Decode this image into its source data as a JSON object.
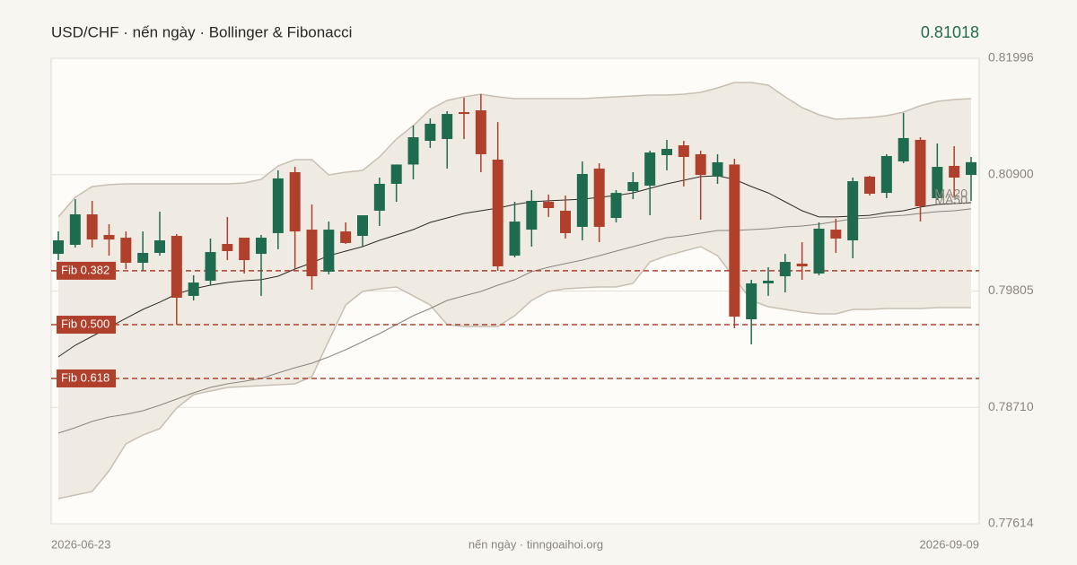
{
  "chart_data": {
    "type": "candlestick",
    "title": "USD/CHF · nến ngày · Bollinger & Fibonacci",
    "last_price": 0.81018,
    "last_price_color": "#236b4e",
    "source": "nến ngày · tinngoaihoi.org",
    "categories": [
      "2026-06-23",
      null,
      null,
      null,
      null,
      null,
      null,
      null,
      null,
      null,
      null,
      null,
      null,
      null,
      null,
      null,
      null,
      null,
      null,
      null,
      null,
      null,
      null,
      null,
      null,
      null,
      null,
      null,
      null,
      null,
      null,
      null,
      null,
      null,
      null,
      null,
      null,
      null,
      null,
      null,
      null,
      null,
      null,
      null,
      null,
      null,
      null,
      null,
      null,
      null,
      null,
      null,
      null,
      null,
      "2026-09-09"
    ],
    "open": [
      0.80155,
      0.8024,
      0.80527,
      0.80333,
      0.80307,
      0.80071,
      0.80164,
      0.80324,
      0.79759,
      0.79902,
      0.80248,
      0.80307,
      0.80155,
      0.8035,
      0.80924,
      0.80383,
      0.79987,
      0.80366,
      0.80324,
      0.80561,
      0.80814,
      0.80996,
      0.81219,
      0.81236,
      0.81489,
      0.81506,
      0.81042,
      0.80138,
      0.80383,
      0.80645,
      0.80561,
      0.80409,
      0.80958,
      0.80493,
      0.80746,
      0.80797,
      0.81084,
      0.81177,
      0.81093,
      0.80882,
      0.80996,
      0.79539,
      0.79877,
      0.79944,
      0.80063,
      0.7997,
      0.80383,
      0.80282,
      0.80882,
      0.80729,
      0.81025,
      0.81228,
      0.80679,
      0.80983,
      0.80898
    ],
    "high": [
      0.80366,
      0.8067,
      0.80654,
      0.80434,
      0.80366,
      0.80366,
      0.80552,
      0.80341,
      0.79953,
      0.80299,
      0.80502,
      0.80307,
      0.80333,
      0.80941,
      0.80974,
      0.8062,
      0.80459,
      0.80451,
      0.80518,
      0.80873,
      0.80996,
      0.81363,
      0.8143,
      0.81498,
      0.81625,
      0.81658,
      0.81396,
      0.80645,
      0.80755,
      0.80713,
      0.80704,
      0.81025,
      0.81008,
      0.80755,
      0.80924,
      0.81126,
      0.81228,
      0.81219,
      0.81126,
      0.81093,
      0.8105,
      0.79911,
      0.80029,
      0.80155,
      0.80265,
      0.80451,
      0.80485,
      0.80873,
      0.8089,
      0.81093,
      0.81481,
      0.81253,
      0.81194,
      0.81169,
      0.81067
    ],
    "low": [
      0.80096,
      0.80214,
      0.80214,
      0.80138,
      0.80012,
      0.79995,
      0.80138,
      0.79488,
      0.79716,
      0.7986,
      0.80096,
      0.7997,
      0.79759,
      0.80198,
      0.80012,
      0.79818,
      0.79961,
      0.80248,
      0.80223,
      0.80417,
      0.80645,
      0.80856,
      0.81152,
      0.80958,
      0.81236,
      0.80924,
      0.79995,
      0.80122,
      0.80223,
      0.80502,
      0.80299,
      0.80282,
      0.80265,
      0.80451,
      0.8067,
      0.80518,
      0.80941,
      0.80789,
      0.80476,
      0.80814,
      0.79455,
      0.79303,
      0.79759,
      0.79792,
      0.79911,
      0.79953,
      0.80164,
      0.80113,
      0.80704,
      0.80679,
      0.81008,
      0.80459,
      0.80662,
      0.80687,
      0.80654
    ],
    "close": [
      0.80282,
      0.80527,
      0.8029,
      0.8029,
      0.80071,
      0.80164,
      0.80282,
      0.79742,
      0.79885,
      0.80172,
      0.80181,
      0.80096,
      0.80307,
      0.80865,
      0.80366,
      0.79944,
      0.80383,
      0.80257,
      0.80518,
      0.80814,
      0.80996,
      0.81253,
      0.8138,
      0.81472,
      0.81472,
      0.81093,
      0.80037,
      0.80459,
      0.80654,
      0.80586,
      0.8035,
      0.80907,
      0.80409,
      0.80729,
      0.80831,
      0.81109,
      0.81143,
      0.81067,
      0.80898,
      0.81017,
      0.79564,
      0.79877,
      0.79902,
      0.80079,
      0.80037,
      0.80392,
      0.80299,
      0.80839,
      0.80721,
      0.81076,
      0.81245,
      0.80603,
      0.80974,
      0.80873,
      0.81018
    ],
    "up_color": "#1f6b4f",
    "down_color": "#b0402b",
    "bollinger": {
      "color": "#c8bfb2",
      "fill": "#efebe3",
      "upper": [
        0.80502,
        0.80687,
        0.80789,
        0.80806,
        0.80814,
        0.80814,
        0.80814,
        0.80814,
        0.80814,
        0.80814,
        0.80814,
        0.80822,
        0.80856,
        0.80983,
        0.81042,
        0.81042,
        0.80898,
        0.80924,
        0.80941,
        0.81067,
        0.81236,
        0.81363,
        0.81515,
        0.81599,
        0.81633,
        0.81658,
        0.81633,
        0.81616,
        0.81616,
        0.81616,
        0.81616,
        0.81616,
        0.81625,
        0.81633,
        0.81641,
        0.8165,
        0.8165,
        0.81658,
        0.81675,
        0.81717,
        0.81768,
        0.81768,
        0.81743,
        0.81633,
        0.81532,
        0.81464,
        0.81422,
        0.8143,
        0.81439,
        0.81456,
        0.81489,
        0.81549,
        0.81591,
        0.81608,
        0.81616
      ],
      "lower": [
        0.77851,
        0.77884,
        0.77918,
        0.78112,
        0.78366,
        0.7845,
        0.78509,
        0.78703,
        0.7883,
        0.78864,
        0.78897,
        0.78906,
        0.78914,
        0.78923,
        0.78931,
        0.78999,
        0.79336,
        0.79674,
        0.79801,
        0.79826,
        0.79843,
        0.79759,
        0.79674,
        0.79488,
        0.79471,
        0.79471,
        0.79471,
        0.79573,
        0.79716,
        0.79801,
        0.79826,
        0.79835,
        0.79843,
        0.79843,
        0.79877,
        0.80079,
        0.80138,
        0.80181,
        0.80223,
        0.80138,
        0.79928,
        0.79716,
        0.79657,
        0.79632,
        0.79607,
        0.7959,
        0.7959,
        0.79632,
        0.79632,
        0.7964,
        0.7964,
        0.7964,
        0.79649,
        0.79649,
        0.79649
      ]
    },
    "series": [
      {
        "name": "MA20",
        "color": "#2e2b28",
        "values": [
          0.79185,
          0.79294,
          0.79379,
          0.79463,
          0.79548,
          0.79632,
          0.797,
          0.79776,
          0.79826,
          0.7986,
          0.79885,
          0.79902,
          0.79911,
          0.79944,
          0.80012,
          0.80071,
          0.80138,
          0.80181,
          0.80223,
          0.80282,
          0.80333,
          0.80383,
          0.80451,
          0.80493,
          0.80535,
          0.80561,
          0.80586,
          0.8062,
          0.80645,
          0.80654,
          0.80662,
          0.8067,
          0.80687,
          0.80704,
          0.80729,
          0.80772,
          0.80814,
          0.80848,
          0.80882,
          0.8089,
          0.80856,
          0.80789,
          0.80729,
          0.80645,
          0.80561,
          0.80502,
          0.80502,
          0.8051,
          0.80518,
          0.80544,
          0.80561,
          0.80595,
          0.8062,
          0.80628,
          0.80637
        ]
      },
      {
        "name": "MA50",
        "color": "#8a847c",
        "values": [
          0.78467,
          0.78518,
          0.78577,
          0.78619,
          0.78644,
          0.78678,
          0.78729,
          0.78788,
          0.78847,
          0.78897,
          0.78931,
          0.78956,
          0.78982,
          0.79033,
          0.79083,
          0.79125,
          0.79185,
          0.79252,
          0.79328,
          0.79404,
          0.79488,
          0.79573,
          0.7964,
          0.79716,
          0.79759,
          0.79801,
          0.7986,
          0.79911,
          0.79987,
          0.80029,
          0.80063,
          0.80096,
          0.80138,
          0.80181,
          0.80223,
          0.80265,
          0.80307,
          0.80324,
          0.8035,
          0.80375,
          0.80375,
          0.80383,
          0.80392,
          0.80409,
          0.80417,
          0.80434,
          0.80459,
          0.80485,
          0.80493,
          0.8051,
          0.80518,
          0.80535,
          0.80552,
          0.80561,
          0.80578
        ]
      }
    ],
    "fib_levels": [
      {
        "label": "Fib 0.382",
        "value": 0.79996
      },
      {
        "label": "Fib 0.500",
        "value": 0.79488
      },
      {
        "label": "Fib 0.618",
        "value": 0.78982
      }
    ],
    "fib_color": "#b0402b",
    "ylim": [
      0.77614,
      0.81996
    ],
    "yticks": [
      0.81996,
      {
        "value": 0.809,
        "label": "0.80900"
      },
      0.79805,
      {
        "value": 0.7871,
        "label": "0.78710"
      },
      0.77614
    ],
    "grid": true
  }
}
